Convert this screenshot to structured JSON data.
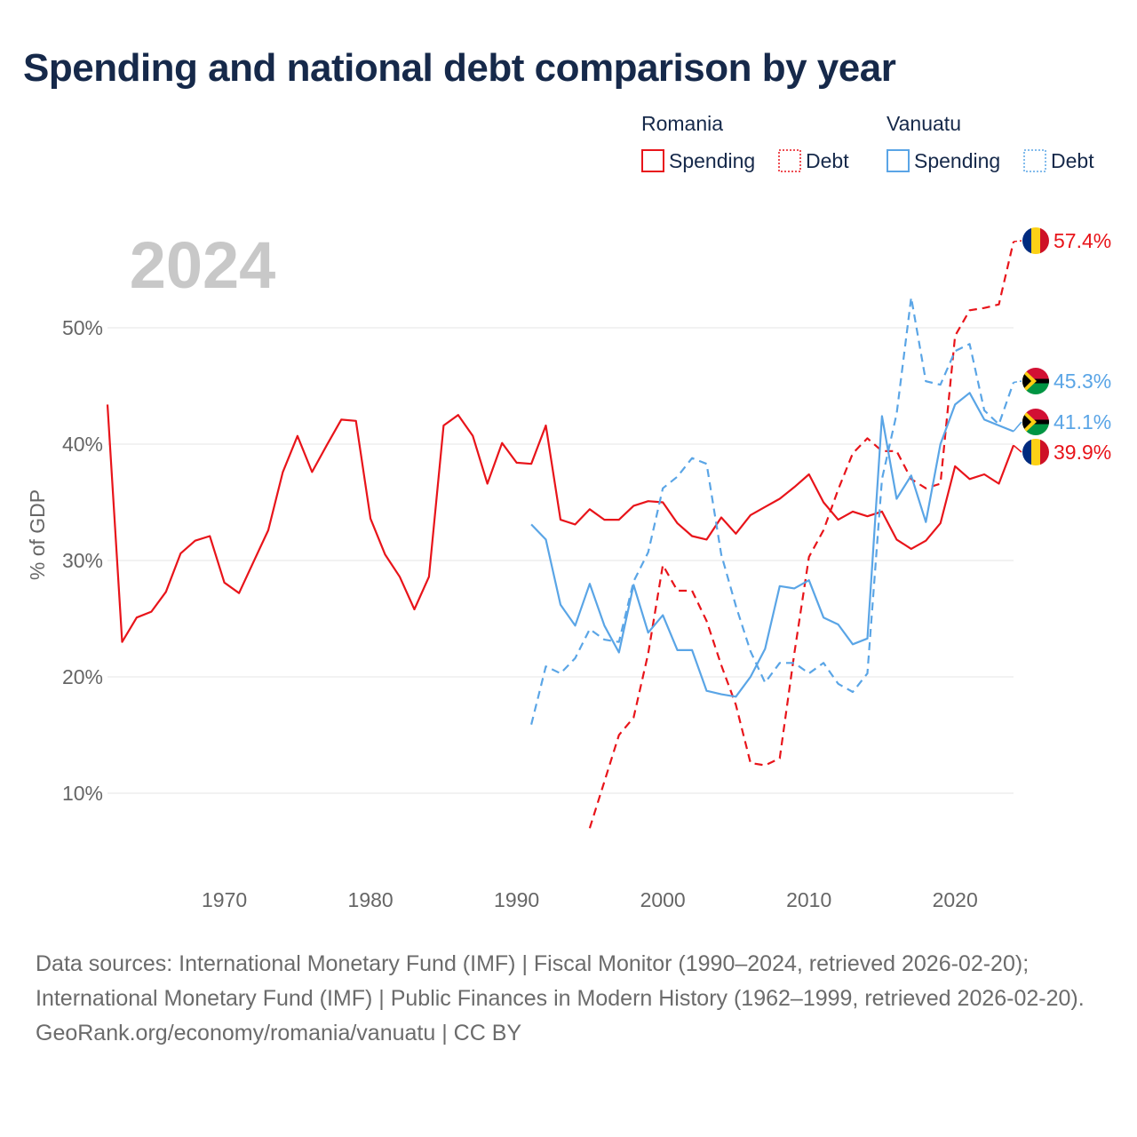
{
  "chart_data": {
    "type": "line",
    "title": "Spending and national debt comparison by year",
    "ylabel": "% of GDP",
    "xlabel": "",
    "xlim": [
      1962,
      2024
    ],
    "ylim": [
      4,
      57.4
    ],
    "y_ticks": [
      10,
      20,
      30,
      40,
      50
    ],
    "y_tick_labels": [
      "10%",
      "20%",
      "30%",
      "40%",
      "50%"
    ],
    "x_ticks": [
      1970,
      1980,
      1990,
      2000,
      2010,
      2020
    ],
    "x_tick_labels": [
      "1970",
      "1980",
      "1990",
      "2000",
      "2010",
      "2020"
    ],
    "year_watermark": "2024",
    "legend": {
      "placement": "top-right",
      "groups": [
        {
          "country": "Romania",
          "entries": [
            "Spending",
            "Debt"
          ]
        },
        {
          "country": "Vanuatu",
          "entries": [
            "Spending",
            "Debt"
          ]
        }
      ]
    },
    "colors": {
      "romania": "#e8141a",
      "vanuatu": "#5aa5e6"
    },
    "series": [
      {
        "name": "Romania Spending",
        "country": "romania",
        "style": "solid",
        "end_label": "39.9%",
        "points": [
          [
            1962,
            43.4
          ],
          [
            1963,
            23.0
          ],
          [
            1964,
            25.1
          ],
          [
            1965,
            25.6
          ],
          [
            1966,
            27.3
          ],
          [
            1967,
            30.6
          ],
          [
            1968,
            31.7
          ],
          [
            1969,
            32.1
          ],
          [
            1970,
            28.1
          ],
          [
            1971,
            27.2
          ],
          [
            1972,
            29.9
          ],
          [
            1973,
            32.6
          ],
          [
            1974,
            37.6
          ],
          [
            1975,
            40.7
          ],
          [
            1976,
            37.6
          ],
          [
            1977,
            39.9
          ],
          [
            1978,
            42.1
          ],
          [
            1979,
            42.0
          ],
          [
            1980,
            33.6
          ],
          [
            1981,
            30.5
          ],
          [
            1982,
            28.6
          ],
          [
            1983,
            25.8
          ],
          [
            1984,
            28.6
          ],
          [
            1985,
            41.6
          ],
          [
            1986,
            42.5
          ],
          [
            1987,
            40.7
          ],
          [
            1988,
            36.6
          ],
          [
            1989,
            40.1
          ],
          [
            1990,
            38.4
          ],
          [
            1991,
            38.3
          ],
          [
            1992,
            41.6
          ],
          [
            1993,
            33.5
          ],
          [
            1994,
            33.1
          ],
          [
            1995,
            34.4
          ],
          [
            1996,
            33.5
          ],
          [
            1997,
            33.5
          ],
          [
            1998,
            34.7
          ],
          [
            1999,
            35.1
          ],
          [
            2000,
            35.0
          ],
          [
            2001,
            33.2
          ],
          [
            2002,
            32.1
          ],
          [
            2003,
            31.8
          ],
          [
            2004,
            33.7
          ],
          [
            2005,
            32.3
          ],
          [
            2006,
            33.9
          ],
          [
            2007,
            34.6
          ],
          [
            2008,
            35.3
          ],
          [
            2009,
            36.3
          ],
          [
            2010,
            37.4
          ],
          [
            2011,
            35.0
          ],
          [
            2012,
            33.5
          ],
          [
            2013,
            34.2
          ],
          [
            2014,
            33.8
          ],
          [
            2015,
            34.2
          ],
          [
            2016,
            31.8
          ],
          [
            2017,
            31.0
          ],
          [
            2018,
            31.7
          ],
          [
            2019,
            33.2
          ],
          [
            2020,
            38.1
          ],
          [
            2021,
            37.0
          ],
          [
            2022,
            37.4
          ],
          [
            2023,
            36.6
          ],
          [
            2024,
            39.9
          ]
        ]
      },
      {
        "name": "Romania Debt",
        "country": "romania",
        "style": "dashed",
        "end_label": "57.4%",
        "points": [
          [
            1995,
            7.0
          ],
          [
            1996,
            11.0
          ],
          [
            1997,
            15.0
          ],
          [
            1998,
            16.5
          ],
          [
            1999,
            22.0
          ],
          [
            2000,
            29.6
          ],
          [
            2001,
            27.4
          ],
          [
            2002,
            27.4
          ],
          [
            2003,
            24.8
          ],
          [
            2004,
            21.0
          ],
          [
            2005,
            17.6
          ],
          [
            2006,
            12.6
          ],
          [
            2007,
            12.4
          ],
          [
            2008,
            13.0
          ],
          [
            2009,
            22.0
          ],
          [
            2010,
            30.3
          ],
          [
            2011,
            32.6
          ],
          [
            2012,
            36.1
          ],
          [
            2013,
            39.2
          ],
          [
            2014,
            40.5
          ],
          [
            2015,
            39.4
          ],
          [
            2016,
            39.4
          ],
          [
            2017,
            37.0
          ],
          [
            2018,
            36.2
          ],
          [
            2019,
            36.6
          ],
          [
            2020,
            49.3
          ],
          [
            2021,
            51.5
          ],
          [
            2022,
            51.7
          ],
          [
            2023,
            52.0
          ],
          [
            2024,
            57.4
          ]
        ]
      },
      {
        "name": "Vanuatu Spending",
        "country": "vanuatu",
        "style": "solid",
        "end_label": "41.1%",
        "points": [
          [
            1991,
            33.1
          ],
          [
            1992,
            31.8
          ],
          [
            1993,
            26.2
          ],
          [
            1994,
            24.4
          ],
          [
            1995,
            28.0
          ],
          [
            1996,
            24.4
          ],
          [
            1997,
            22.1
          ],
          [
            1998,
            27.9
          ],
          [
            1999,
            23.8
          ],
          [
            2000,
            25.3
          ],
          [
            2001,
            22.3
          ],
          [
            2002,
            22.3
          ],
          [
            2003,
            18.8
          ],
          [
            2004,
            18.5
          ],
          [
            2005,
            18.3
          ],
          [
            2006,
            20.0
          ],
          [
            2007,
            22.4
          ],
          [
            2008,
            27.8
          ],
          [
            2009,
            27.6
          ],
          [
            2010,
            28.3
          ],
          [
            2011,
            25.1
          ],
          [
            2012,
            24.5
          ],
          [
            2013,
            22.8
          ],
          [
            2014,
            23.3
          ],
          [
            2015,
            42.4
          ],
          [
            2016,
            35.3
          ],
          [
            2017,
            37.3
          ],
          [
            2018,
            33.3
          ],
          [
            2019,
            40.0
          ],
          [
            2020,
            43.4
          ],
          [
            2021,
            44.4
          ],
          [
            2022,
            42.1
          ],
          [
            2023,
            41.6
          ],
          [
            2024,
            41.1
          ]
        ]
      },
      {
        "name": "Vanuatu Debt",
        "country": "vanuatu",
        "style": "dashed",
        "end_label": "45.3%",
        "points": [
          [
            1991,
            15.9
          ],
          [
            1992,
            20.9
          ],
          [
            1993,
            20.3
          ],
          [
            1994,
            21.6
          ],
          [
            1995,
            24.1
          ],
          [
            1996,
            23.2
          ],
          [
            1997,
            23.0
          ],
          [
            1998,
            28.2
          ],
          [
            1999,
            30.7
          ],
          [
            2000,
            36.2
          ],
          [
            2001,
            37.2
          ],
          [
            2002,
            38.8
          ],
          [
            2003,
            38.3
          ],
          [
            2004,
            30.5
          ],
          [
            2005,
            26.1
          ],
          [
            2006,
            22.2
          ],
          [
            2007,
            19.5
          ],
          [
            2008,
            21.2
          ],
          [
            2009,
            21.2
          ],
          [
            2010,
            20.3
          ],
          [
            2011,
            21.2
          ],
          [
            2012,
            19.4
          ],
          [
            2013,
            18.7
          ],
          [
            2014,
            20.3
          ],
          [
            2015,
            37.0
          ],
          [
            2016,
            42.6
          ],
          [
            2017,
            52.6
          ],
          [
            2018,
            45.4
          ],
          [
            2019,
            45.1
          ],
          [
            2020,
            48.0
          ],
          [
            2021,
            48.6
          ],
          [
            2022,
            42.9
          ],
          [
            2023,
            41.7
          ],
          [
            2024,
            45.3
          ]
        ]
      }
    ]
  },
  "footer": {
    "sources": "Data sources: International Monetary Fund (IMF) | Fiscal Monitor (1990–2024, retrieved 2026-02-20); International Monetary Fund (IMF) | Public Finances in Modern History (1962–1999, retrieved 2026-02-20).",
    "credit": "GeoRank.org/economy/romania/vanuatu | CC BY"
  }
}
